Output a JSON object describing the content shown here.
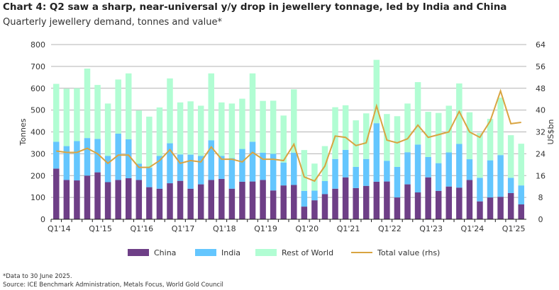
{
  "title": "Chart 4: Q2 saw a sharp, near-universal y/y drop in jewellery tonnage, led by India and China",
  "subtitle": "Quarterly jewellery demand, tonnes and value*",
  "footnote": "*Data to 30 June 2025.",
  "source": "Source: ICE Benchmark Administration, Metals Focus, World Gold Council",
  "chart_data": {
    "type": "bar",
    "stacked": true,
    "ylabel": "Tonnes",
    "y2label": "US$bn",
    "ylim": [
      0,
      800
    ],
    "y2lim": [
      0,
      64
    ],
    "yticks": [
      0,
      100,
      200,
      300,
      400,
      500,
      600,
      700,
      800
    ],
    "y2ticks": [
      0,
      8,
      16,
      24,
      32,
      40,
      48,
      56,
      64
    ],
    "xtick_labels": [
      "Q1'14",
      "Q1'15",
      "Q1'16",
      "Q1'17",
      "Q1'18",
      "Q1'19",
      "Q1'20",
      "Q1'21",
      "Q1'22",
      "Q1'23",
      "Q1'24",
      "Q1'25"
    ],
    "colors": {
      "China": "#6e3f87",
      "India": "#64c6fe",
      "Rest of World": "#b1fdd3",
      "Total value (rhs)": "#d9a441"
    },
    "legend": [
      "China",
      "India",
      "Rest of World",
      "Total value (rhs)"
    ],
    "legend_position": "bottom",
    "series": [
      {
        "name": "China",
        "values": [
          232,
          180,
          178,
          200,
          215,
          170,
          180,
          188,
          180,
          147,
          140,
          165,
          176,
          140,
          160,
          180,
          185,
          140,
          172,
          173,
          180,
          132,
          155,
          157,
          58,
          87,
          115,
          140,
          192,
          143,
          153,
          172,
          173,
          100,
          160,
          123,
          192,
          130,
          150,
          145,
          180,
          82,
          100,
          103,
          120,
          68
        ]
      },
      {
        "name": "India",
        "values": [
          123,
          155,
          180,
          172,
          153,
          120,
          212,
          178,
          75,
          89,
          150,
          183,
          121,
          156,
          130,
          182,
          105,
          140,
          150,
          182,
          125,
          168,
          105,
          148,
          72,
          44,
          60,
          136,
          126,
          97,
          123,
          268,
          95,
          140,
          147,
          219,
          93,
          127,
          156,
          200,
          95,
          108,
          170,
          191,
          70,
          87
        ]
      },
      {
        "name": "Rest of World",
        "values": [
          265,
          263,
          242,
          318,
          247,
          240,
          248,
          302,
          243,
          234,
          222,
          297,
          238,
          244,
          230,
          306,
          245,
          250,
          230,
          313,
          237,
          243,
          215,
          290,
          187,
          124,
          160,
          237,
          204,
          213,
          209,
          290,
          214,
          232,
          223,
          286,
          207,
          230,
          214,
          277,
          215,
          205,
          190,
          263,
          195,
          191
        ]
      },
      {
        "name": "Total value (rhs)",
        "axis": "right",
        "values": [
          25,
          24.5,
          24.5,
          26,
          24,
          20.5,
          23.5,
          23.5,
          19,
          19,
          21.5,
          25.5,
          20.5,
          21.5,
          21,
          26.5,
          22,
          22,
          21,
          24.5,
          22,
          22,
          21.5,
          27.5,
          15.5,
          14,
          19.5,
          30.5,
          30,
          27,
          28,
          41.5,
          29,
          28,
          29.5,
          34.5,
          30,
          31,
          32,
          39.5,
          32,
          30,
          36,
          47,
          35,
          35.5
        ]
      }
    ]
  }
}
